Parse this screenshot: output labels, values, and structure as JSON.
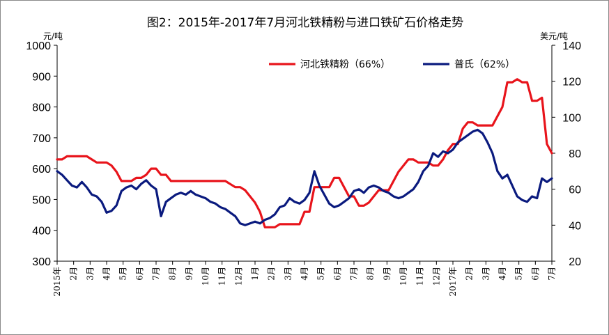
{
  "chart_data": {
    "type": "line",
    "title": "图2：2015年-2017年7月河北铁精粉与进口铁矿石价格走势",
    "ylabel_left": "元/吨",
    "ylabel_right": "美元/吨",
    "ylim_left": [
      300,
      1000
    ],
    "ylim_right": [
      20,
      140
    ],
    "yticks_left": [
      "300",
      "400",
      "500",
      "600",
      "700",
      "800",
      "900",
      "1000"
    ],
    "yticks_right": [
      "20",
      "40",
      "60",
      "80",
      "100",
      "120",
      "140"
    ],
    "legend_position": "top-right",
    "x_tick_labels": [
      "2015年",
      "2月",
      "3月",
      "4月",
      "5月",
      "6月",
      "7月",
      "8月",
      "9月",
      "10月",
      "11月",
      "12月",
      "1月",
      "2月",
      "3月",
      "4月",
      "5月",
      "6月",
      "7月",
      "8月",
      "9月",
      "10月",
      "11月",
      "12月",
      "2017年",
      "2月",
      "3月",
      "4月",
      "5月",
      "6月",
      "7月"
    ],
    "series": [
      {
        "name": "河北铁精粉（66%）",
        "axis": "left",
        "color": "#e8141b",
        "x": [
          0,
          0.3,
          0.6,
          0.9,
          1.2,
          1.5,
          1.8,
          2.1,
          2.4,
          2.7,
          3.0,
          3.3,
          3.6,
          3.9,
          4.2,
          4.5,
          4.8,
          5.1,
          5.4,
          5.7,
          6.0,
          6.3,
          6.6,
          6.9,
          7.2,
          7.5,
          7.8,
          8.1,
          8.4,
          8.7,
          9.0,
          9.3,
          9.6,
          9.9,
          10.2,
          10.5,
          10.8,
          11.1,
          11.4,
          11.7,
          12.0,
          12.3,
          12.6,
          12.9,
          13.2,
          13.5,
          13.8,
          14.1,
          14.4,
          14.7,
          15.0,
          15.3,
          15.6,
          15.9,
          16.2,
          16.5,
          16.8,
          17.1,
          17.4,
          17.7,
          18.0,
          18.3,
          18.6,
          18.9,
          19.2,
          19.5,
          19.8,
          20.1,
          20.4,
          20.7,
          21.0,
          21.3,
          21.6,
          21.9,
          22.2,
          22.5,
          22.8,
          23.1,
          23.4,
          23.7,
          24.0,
          24.3,
          24.6,
          24.9,
          25.2,
          25.5,
          25.8,
          26.1,
          26.4,
          26.7,
          27.0,
          27.3,
          27.6,
          27.9,
          28.2,
          28.5,
          28.8,
          29.1,
          29.4,
          29.7,
          30.0
        ],
        "values": [
          630,
          630,
          640,
          640,
          640,
          640,
          640,
          630,
          620,
          620,
          620,
          610,
          590,
          560,
          560,
          560,
          570,
          570,
          580,
          600,
          600,
          580,
          580,
          560,
          560,
          560,
          560,
          560,
          560,
          560,
          560,
          560,
          560,
          560,
          560,
          550,
          540,
          540,
          530,
          510,
          490,
          460,
          410,
          410,
          410,
          420,
          420,
          420,
          420,
          420,
          460,
          460,
          540,
          540,
          540,
          540,
          570,
          570,
          540,
          510,
          510,
          480,
          480,
          490,
          510,
          530,
          530,
          530,
          560,
          590,
          610,
          630,
          630,
          620,
          620,
          620,
          610,
          610,
          630,
          660,
          680,
          680,
          730,
          750,
          750,
          740,
          740,
          740,
          740,
          770,
          800,
          880,
          880,
          890,
          880,
          880,
          820,
          820,
          830,
          680,
          650
        ]
      },
      {
        "name": "普氏（62%）",
        "axis": "right",
        "color": "#0a1a7e",
        "x": [
          0,
          0.3,
          0.6,
          0.9,
          1.2,
          1.5,
          1.8,
          2.1,
          2.4,
          2.7,
          3.0,
          3.3,
          3.6,
          3.9,
          4.2,
          4.5,
          4.8,
          5.1,
          5.4,
          5.7,
          6.0,
          6.3,
          6.6,
          6.9,
          7.2,
          7.5,
          7.8,
          8.1,
          8.4,
          8.7,
          9.0,
          9.3,
          9.6,
          9.9,
          10.2,
          10.5,
          10.8,
          11.1,
          11.4,
          11.7,
          12.0,
          12.3,
          12.6,
          12.9,
          13.2,
          13.5,
          13.8,
          14.1,
          14.4,
          14.7,
          15.0,
          15.3,
          15.6,
          15.9,
          16.2,
          16.5,
          16.8,
          17.1,
          17.4,
          17.7,
          18.0,
          18.3,
          18.6,
          18.9,
          19.2,
          19.5,
          19.8,
          20.1,
          20.4,
          20.7,
          21.0,
          21.3,
          21.6,
          21.9,
          22.2,
          22.5,
          22.8,
          23.1,
          23.4,
          23.7,
          24.0,
          24.3,
          24.6,
          24.9,
          25.2,
          25.5,
          25.8,
          26.1,
          26.4,
          26.7,
          27.0,
          27.3,
          27.6,
          27.9,
          28.2,
          28.5,
          28.8,
          29.1,
          29.4,
          29.7,
          30.0
        ],
        "values": [
          70,
          68,
          65,
          62,
          61,
          64,
          61,
          57,
          56,
          53,
          47,
          48,
          51,
          59,
          61,
          62,
          60,
          63,
          65,
          62,
          60,
          45,
          53,
          55,
          57,
          58,
          57,
          59,
          57,
          56,
          55,
          53,
          52,
          50,
          49,
          47,
          45,
          41,
          40,
          41,
          42,
          41,
          43,
          44,
          46,
          50,
          51,
          55,
          53,
          52,
          54,
          58,
          70,
          62,
          57,
          52,
          50,
          51,
          53,
          55,
          59,
          60,
          58,
          61,
          62,
          61,
          59,
          58,
          56,
          55,
          56,
          58,
          60,
          64,
          70,
          73,
          80,
          78,
          81,
          80,
          82,
          86,
          88,
          90,
          92,
          93,
          91,
          86,
          80,
          70,
          66,
          68,
          62,
          56,
          54,
          53,
          56,
          55,
          66,
          64,
          66
        ]
      }
    ]
  }
}
